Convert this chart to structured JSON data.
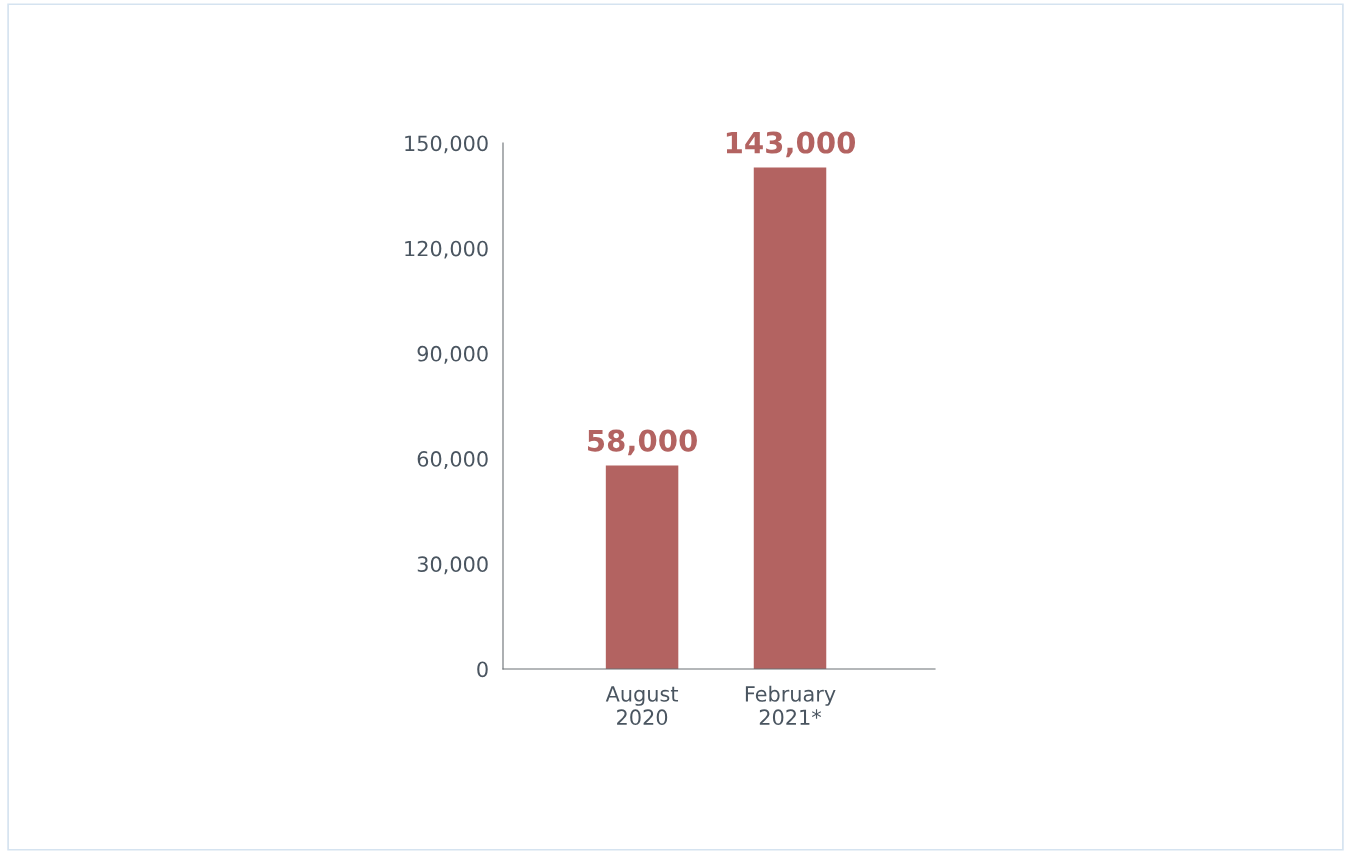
{
  "chart_data": {
    "type": "bar",
    "categories": [
      "August\n2020",
      "February\n2021*"
    ],
    "values": [
      58000,
      143000
    ],
    "color": "#b36361",
    "ylim": [
      0,
      150000
    ],
    "yticks": [
      {
        "value": 0,
        "label": "0"
      },
      {
        "value": 30000,
        "label": "30,000"
      },
      {
        "value": 60000,
        "label": "60,000"
      },
      {
        "value": 90000,
        "label": "90,000"
      },
      {
        "value": 120000,
        "label": "120,000"
      },
      {
        "value": 150000,
        "label": "150,000"
      }
    ],
    "value_labels": [
      "58,000",
      "143,000"
    ],
    "grid": false,
    "legend": false
  }
}
